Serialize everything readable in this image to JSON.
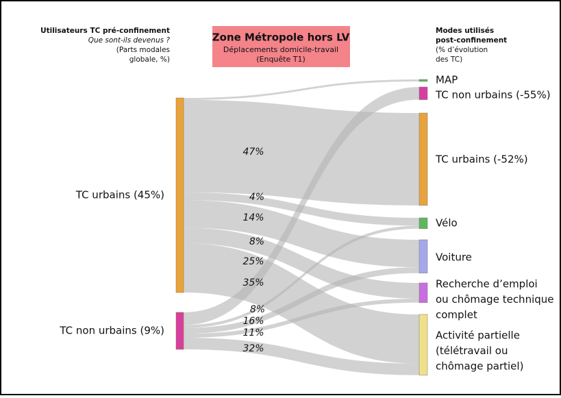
{
  "chart_data": {
    "type": "sankey",
    "title": "Zone Métropole hors LV",
    "subtitle": [
      "Déplacements domicile-travail",
      "(Enquête T1)"
    ],
    "left_header": {
      "title": "Utilisateurs TC pré-confinement",
      "question": "Que sont-ils devenus ?",
      "note": [
        "(Parts modales",
        "globale, %)"
      ]
    },
    "right_header": {
      "title": [
        "Modes utilisés",
        "post-confinement"
      ],
      "note": [
        "(% d’évolution",
        "des TC)"
      ]
    },
    "sources": [
      {
        "label": [
          "TC urbains (45%)"
        ],
        "color": "#e8a33c"
      },
      {
        "label": [
          "TC non urbains (9%)"
        ],
        "color": "#d63fa0"
      }
    ],
    "targets": [
      {
        "label": [
          "MAP"
        ],
        "color": "#5cb85c"
      },
      {
        "label": [
          "TC non urbains (-55%)"
        ],
        "color": "#d63fa0"
      },
      {
        "label": [
          "TC urbains (-52%)"
        ],
        "color": "#e8a33c"
      },
      {
        "label": [
          "Vélo"
        ],
        "color": "#5cb85c"
      },
      {
        "label": [
          "Voiture"
        ],
        "color": "#a3a8ea"
      },
      {
        "label": [
          "Recherche d’emploi",
          "ou chômage technique",
          "complet"
        ],
        "color": "#c86ee0"
      },
      {
        "label": [
          "Activité partielle",
          "(télétravail ou",
          "chômage partiel)"
        ],
        "color": "#f0e08a"
      }
    ],
    "flows": [
      {
        "source": 0,
        "target": 0,
        "value": 1
      },
      {
        "source": 0,
        "target": 2,
        "value": 47,
        "label": "47%"
      },
      {
        "source": 0,
        "target": 3,
        "value": 4,
        "label": "4%"
      },
      {
        "source": 0,
        "target": 4,
        "value": 14,
        "label": "14%"
      },
      {
        "source": 0,
        "target": 5,
        "value": 8,
        "label": "8%"
      },
      {
        "source": 0,
        "target": 6,
        "value": 25,
        "label": "25%"
      },
      {
        "source": 1,
        "target": 1,
        "value": 35,
        "label": "35%"
      },
      {
        "source": 1,
        "target": 3,
        "value": 8,
        "label": "8%"
      },
      {
        "source": 1,
        "target": 4,
        "value": 16,
        "label": "16%"
      },
      {
        "source": 1,
        "target": 5,
        "value": 11,
        "label": "11%"
      },
      {
        "source": 1,
        "target": 6,
        "value": 32,
        "label": "32%"
      }
    ]
  }
}
